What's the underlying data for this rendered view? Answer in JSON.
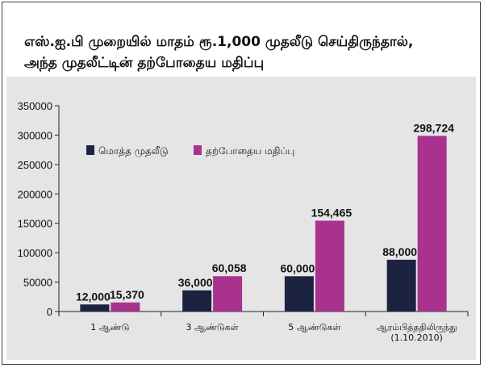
{
  "title": {
    "line1": "எஸ்.ஐ.பி முறையில் மாதம் ரூ.1,000 முதலீடு செய்திருந்தால்,",
    "line2": "அந்த முதலீட்டின் தற்போதைய மதிப்பு"
  },
  "chart_data": {
    "type": "bar",
    "categories": [
      [
        "1 ஆண்டு"
      ],
      [
        "3 ஆண்டுகள்"
      ],
      [
        "5 ஆண்டுகள்"
      ],
      [
        "ஆரம்பித்ததிலிருந்து",
        "(1.10.2010)"
      ]
    ],
    "series": [
      {
        "name": "மொத்த முதலீடு",
        "color": "#1c2340",
        "values": [
          12000,
          36000,
          60000,
          88000
        ],
        "labels": [
          "12,000",
          "36,000",
          "60,000",
          "88,000"
        ]
      },
      {
        "name": "தற்போதைய மதிப்பு",
        "color": "#a8328e",
        "values": [
          15370,
          60058,
          154465,
          298724
        ],
        "labels": [
          "15,370",
          "60,058",
          "154,465",
          "298,724"
        ]
      }
    ],
    "yticks": [
      "0",
      "50000",
      "100000",
      "150000",
      "200000",
      "250000",
      "300000",
      "350000"
    ],
    "ylim": [
      0,
      350000
    ],
    "grid": false,
    "legend": "top-left"
  }
}
